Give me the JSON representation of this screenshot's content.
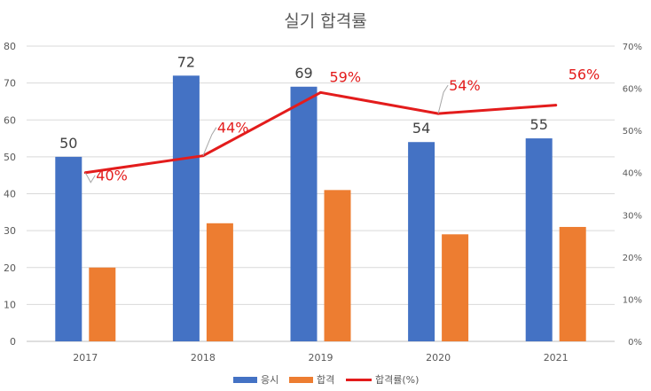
{
  "chart_data": {
    "type": "bar",
    "title": "실기 합격률",
    "categories": [
      "2017",
      "2018",
      "2019",
      "2020",
      "2021"
    ],
    "series": [
      {
        "name": "응시",
        "type": "bar",
        "axis": "left",
        "color": "#4472c4",
        "values": [
          50,
          72,
          69,
          54,
          55
        ],
        "labels": [
          "50",
          "72",
          "69",
          "54",
          "55"
        ]
      },
      {
        "name": "합격",
        "type": "bar",
        "axis": "left",
        "color": "#ed7d31",
        "values": [
          20,
          32,
          41,
          29,
          31
        ]
      },
      {
        "name": "합격률(%)",
        "type": "line",
        "axis": "right",
        "color": "#e31c1c",
        "values": [
          40,
          44,
          59,
          54,
          56
        ],
        "labels": [
          "40%",
          "44%",
          "59%",
          "54%",
          "56%"
        ]
      }
    ],
    "y_left": {
      "min": 0,
      "max": 80,
      "step": 10,
      "ticks": [
        "0",
        "10",
        "20",
        "30",
        "40",
        "50",
        "60",
        "70",
        "80"
      ]
    },
    "y_right": {
      "min": 0,
      "max": 70,
      "step": 10,
      "ticks": [
        "0%",
        "10%",
        "20%",
        "30%",
        "40%",
        "50%",
        "60%",
        "70%"
      ]
    },
    "grid": true,
    "legend_position": "bottom"
  }
}
